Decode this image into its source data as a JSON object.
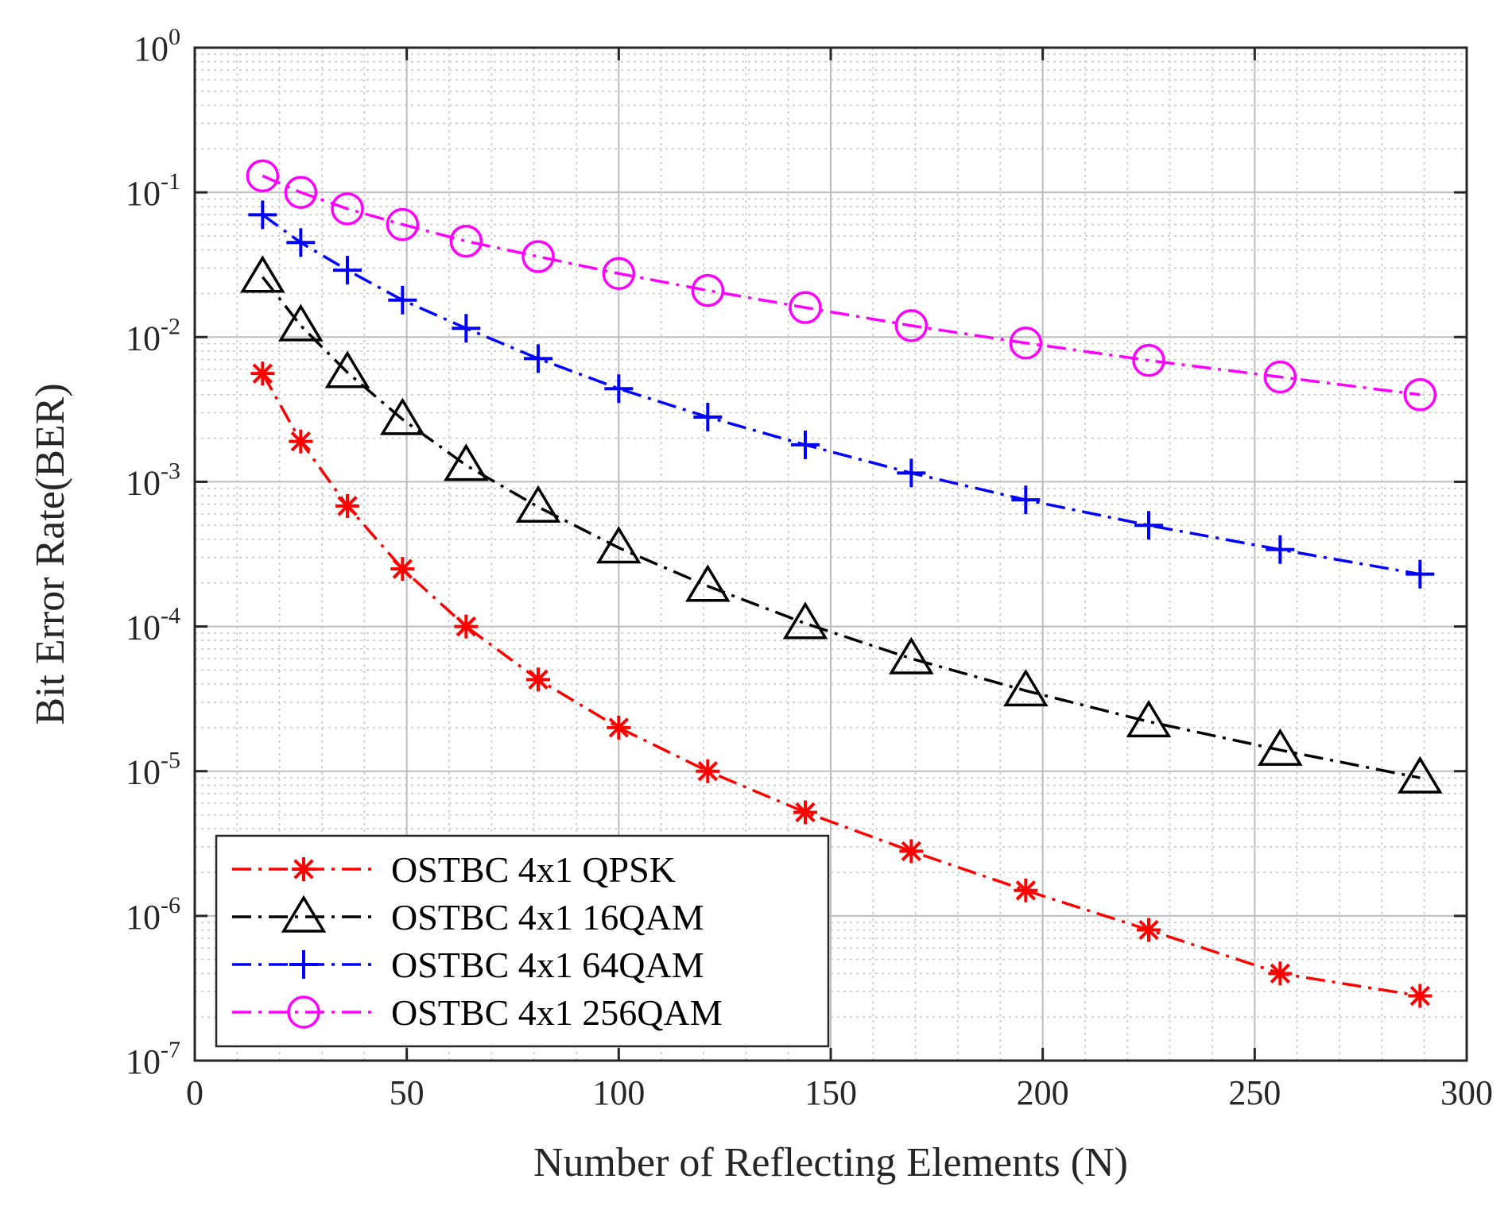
{
  "chart_data": {
    "type": "line",
    "xlabel": "Number of Reflecting Elements (N)",
    "ylabel": "Bit Error Rate(BER)",
    "xlim": [
      0,
      300
    ],
    "ylim_log10": [
      -7,
      0
    ],
    "y_scale": "log",
    "grid": true,
    "minor_grid": true,
    "legend_position": "bottom-left",
    "x_ticks": [
      "0",
      "50",
      "100",
      "150",
      "200",
      "250",
      "300"
    ],
    "y_tick_base": "10",
    "y_tick_exponents": [
      "0",
      "-1",
      "-2",
      "-3",
      "-4",
      "-5",
      "-6",
      "-7"
    ],
    "x": [
      16,
      25,
      36,
      49,
      64,
      81,
      100,
      121,
      144,
      169,
      196,
      225,
      256,
      289
    ],
    "series": [
      {
        "name": "OSTBC 4x1 QPSK",
        "color": "#ff0000",
        "marker": "asterisk",
        "values": [
          0.0056,
          0.0019,
          0.00068,
          0.00025,
          0.0001,
          4.3e-05,
          2e-05,
          1e-05,
          5.2e-06,
          2.8e-06,
          1.5e-06,
          8e-07,
          4e-07,
          2.8e-07
        ]
      },
      {
        "name": "OSTBC 4x1 16QAM",
        "color": "#000000",
        "marker": "triangle",
        "values": [
          0.026,
          0.012,
          0.0057,
          0.0027,
          0.0013,
          0.00067,
          0.00035,
          0.00019,
          0.000105,
          6e-05,
          3.6e-05,
          2.2e-05,
          1.4e-05,
          9e-06
        ]
      },
      {
        "name": "OSTBC 4x1 64QAM",
        "color": "#0000ff",
        "marker": "plus",
        "values": [
          0.07,
          0.045,
          0.029,
          0.018,
          0.0115,
          0.0071,
          0.0044,
          0.0028,
          0.0018,
          0.00115,
          0.00075,
          0.0005,
          0.00034,
          0.00023
        ]
      },
      {
        "name": "OSTBC 4x1 256QAM",
        "color": "#ff00ff",
        "marker": "circle",
        "values": [
          0.13,
          0.1,
          0.077,
          0.06,
          0.046,
          0.036,
          0.0275,
          0.021,
          0.016,
          0.012,
          0.0091,
          0.0069,
          0.0053,
          0.004
        ]
      }
    ]
  }
}
